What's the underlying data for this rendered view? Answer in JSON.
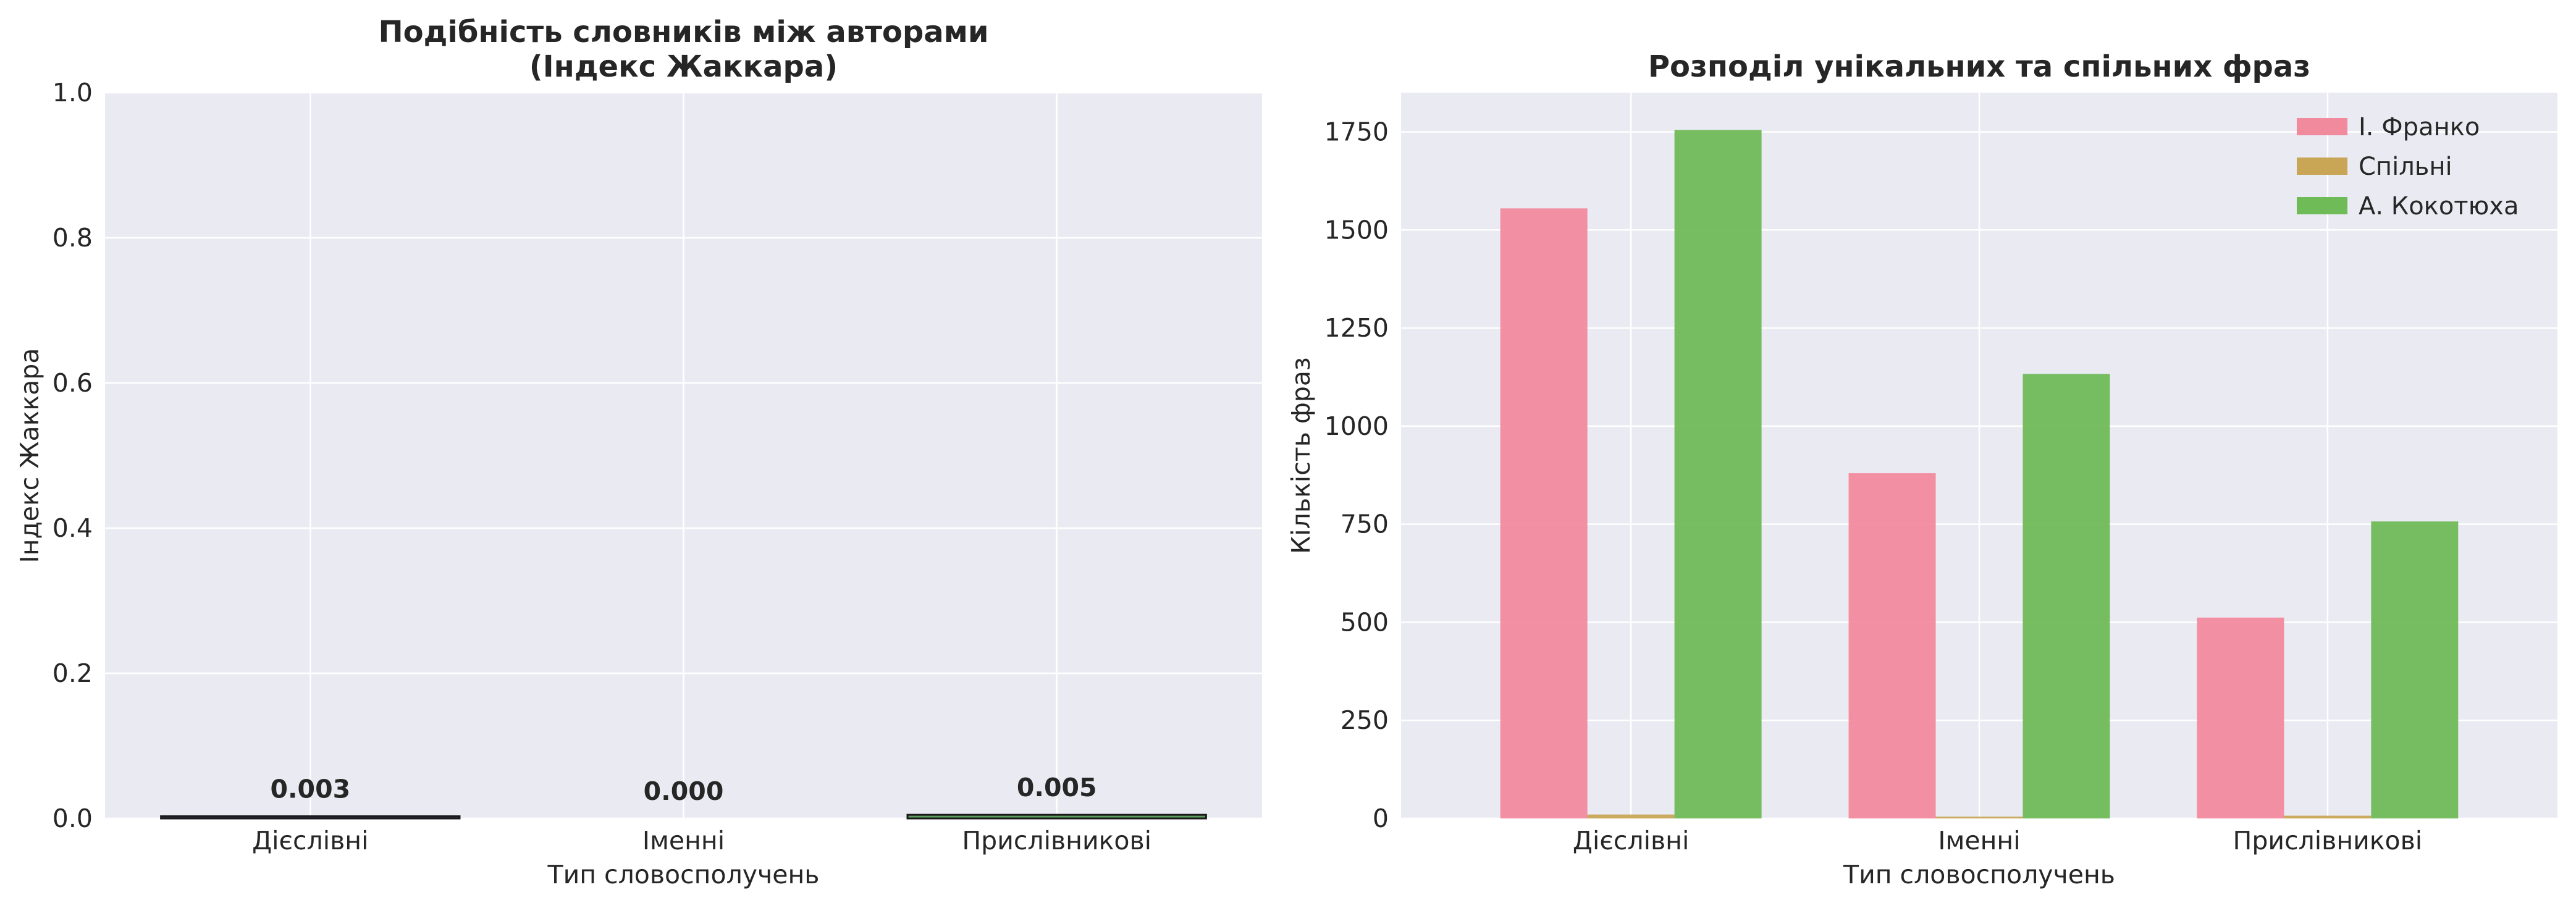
{
  "chart_data": [
    {
      "type": "bar",
      "title_lines": [
        "Подібність словників між авторами",
        "(Індекс Жаккара)"
      ],
      "xlabel": "Тип словосполучень",
      "ylabel": "Індекс Жаккара",
      "categories": [
        "Дієслівні",
        "Іменні",
        "Прислівникові"
      ],
      "values": [
        0.003,
        0.0,
        0.005
      ],
      "value_labels": [
        "0.003",
        "0.000",
        "0.005"
      ],
      "bar_colors": [
        "#2b2c4c",
        "#2b2c4c",
        "#5f9c60"
      ],
      "ylim": [
        0,
        1.0
      ],
      "yticks": [
        0.0,
        0.2,
        0.4,
        0.6,
        0.8,
        1.0
      ],
      "ytick_labels": [
        "0.0",
        "0.2",
        "0.4",
        "0.6",
        "0.8",
        "1.0"
      ],
      "grid": true
    },
    {
      "type": "bar",
      "title": "Розподіл унікальних та спільних фраз",
      "xlabel": "Тип словосполучень",
      "ylabel": "Кількість фраз",
      "categories": [
        "Дієслівні",
        "Іменні",
        "Прислівникові"
      ],
      "series": [
        {
          "name": "І. Франко",
          "color": "#f28a9e",
          "values": [
            1555,
            880,
            512
          ]
        },
        {
          "name": "Спільні",
          "color": "#c8a655",
          "values": [
            10,
            0,
            7
          ]
        },
        {
          "name": "А. Кокотюха",
          "color": "#6fbb57",
          "values": [
            1755,
            1133,
            757
          ]
        }
      ],
      "ylim": [
        0,
        1850
      ],
      "yticks": [
        0,
        250,
        500,
        750,
        1000,
        1250,
        1500,
        1750
      ],
      "ytick_labels": [
        "0",
        "250",
        "500",
        "750",
        "1000",
        "1250",
        "1500",
        "1750"
      ],
      "legend_position": "top-right",
      "grid": true
    }
  ]
}
